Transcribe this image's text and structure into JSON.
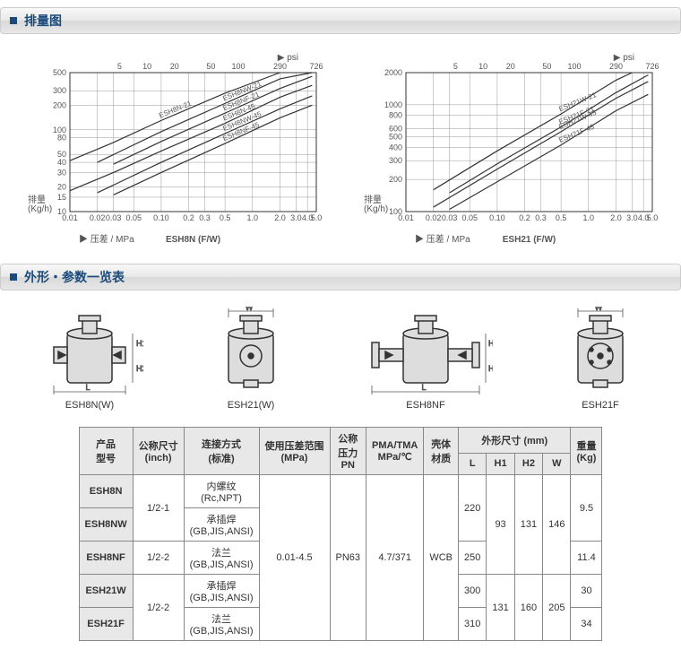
{
  "sections": {
    "capacity_title": "排量图",
    "dimensions_title": "外形・参数一览表"
  },
  "chart_left": {
    "title": "ESH8N (F/W)",
    "x_axis_label": "▶ 压差 / MPa",
    "x_axis_label2": "▶ psi",
    "y_axis_label": "排量\n(Kg/h)",
    "x_ticks_bottom": [
      "0.01",
      "0.02",
      "0.03",
      "0.05",
      "0.10",
      "0.2",
      "0.3",
      "0.5",
      "1.0",
      "2.0",
      "3.0",
      "4.0",
      "5.0"
    ],
    "x_ticks_top": [
      "5",
      "10",
      "20",
      "50",
      "100",
      "290",
      "726"
    ],
    "y_ticks": [
      "10",
      "15",
      "20",
      "30",
      "40",
      "50",
      "80",
      "100",
      "200",
      "300",
      "500"
    ],
    "xlim": [
      0.01,
      5.0
    ],
    "ylim": [
      10,
      500
    ],
    "curves": [
      {
        "label": "ESH8N-21",
        "points": [
          [
            0.01,
            42
          ],
          [
            0.03,
            70
          ],
          [
            0.1,
            130
          ],
          [
            0.5,
            280
          ],
          [
            2.0,
            500
          ]
        ]
      },
      {
        "label": "ESH8NW-21",
        "points": [
          [
            0.02,
            40
          ],
          [
            0.1,
            95
          ],
          [
            0.5,
            210
          ],
          [
            2.0,
            420
          ],
          [
            4.5,
            500
          ]
        ]
      },
      {
        "label": "ESH8NF-21",
        "points": [
          [
            0.03,
            38
          ],
          [
            0.1,
            72
          ],
          [
            0.5,
            160
          ],
          [
            2.0,
            320
          ],
          [
            4.5,
            450
          ]
        ]
      },
      {
        "label": "ESH8N-45",
        "points": [
          [
            0.01,
            18
          ],
          [
            0.03,
            30
          ],
          [
            0.1,
            55
          ],
          [
            0.5,
            120
          ],
          [
            2.0,
            250
          ],
          [
            4.5,
            350
          ]
        ]
      },
      {
        "label": "ESH8NW-45",
        "points": [
          [
            0.02,
            17
          ],
          [
            0.1,
            40
          ],
          [
            0.5,
            90
          ],
          [
            2.0,
            180
          ],
          [
            4.5,
            260
          ]
        ]
      },
      {
        "label": "ESH8NF-45",
        "points": [
          [
            0.03,
            16
          ],
          [
            0.1,
            30
          ],
          [
            0.5,
            68
          ],
          [
            2.0,
            140
          ],
          [
            4.5,
            200
          ]
        ]
      }
    ],
    "grid_color": "#999",
    "line_color": "#333",
    "background": "#fff"
  },
  "chart_right": {
    "title": "ESH21 (F/W)",
    "x_axis_label": "▶ 压差 / MPa",
    "x_axis_label2": "▶ psi",
    "y_axis_label": "排量\n(Kg/h)",
    "x_ticks_bottom": [
      "0.01",
      "0.02",
      "0.03",
      "0.05",
      "0.10",
      "0.2",
      "0.3",
      "0.5",
      "1.0",
      "2.0",
      "3.0",
      "4.0",
      "5.0"
    ],
    "x_ticks_top": [
      "5",
      "10",
      "20",
      "50",
      "100",
      "290",
      "726"
    ],
    "y_ticks": [
      "100",
      "200",
      "300",
      "400",
      "500",
      "600",
      "800",
      "1000",
      "2000"
    ],
    "xlim": [
      0.01,
      5.0
    ],
    "ylim": [
      100,
      2000
    ],
    "curves": [
      {
        "label": "ESH21W-21",
        "points": [
          [
            0.02,
            160
          ],
          [
            0.1,
            370
          ],
          [
            0.5,
            820
          ],
          [
            2.0,
            1700
          ],
          [
            3.0,
            2000
          ]
        ]
      },
      {
        "label": "ESH21F-21",
        "points": [
          [
            0.03,
            150
          ],
          [
            0.1,
            280
          ],
          [
            0.5,
            620
          ],
          [
            2.0,
            1300
          ],
          [
            4.5,
            1900
          ]
        ]
      },
      {
        "label": "ESH21W-45",
        "points": [
          [
            0.02,
            110
          ],
          [
            0.1,
            250
          ],
          [
            0.5,
            560
          ],
          [
            2.0,
            1150
          ],
          [
            4.5,
            1650
          ]
        ]
      },
      {
        "label": "ESH21F-45",
        "points": [
          [
            0.03,
            105
          ],
          [
            0.1,
            190
          ],
          [
            0.5,
            420
          ],
          [
            2.0,
            880
          ],
          [
            4.5,
            1250
          ]
        ]
      }
    ],
    "grid_color": "#999",
    "line_color": "#333",
    "background": "#fff"
  },
  "drawings": {
    "labels": [
      "ESH8N(W)",
      "ESH21(W)",
      "ESH8NF",
      "ESH21F"
    ],
    "dims": [
      "L",
      "W",
      "H1",
      "H2"
    ]
  },
  "table": {
    "headers": {
      "model": "产品\n型号",
      "nominal": "公称尺寸\n(inch)",
      "connection": "连接方式\n(标准)",
      "pressure_range": "使用压差范围\n(MPa)",
      "pn": "公称\n压力\nPN",
      "pma": "PMA/TMA\nMPa/℃",
      "material": "壳体\n材质",
      "dimensions": "外形尺寸 (mm)",
      "L": "L",
      "H1": "H1",
      "H2": "H2",
      "W": "W",
      "weight": "重量\n(Kg)"
    },
    "rows": [
      {
        "model": "ESH8N",
        "nominal": "1/2-1",
        "connection": "内螺纹\n(Rc,NPT)",
        "range": "0.01-4.5",
        "pn": "PN63",
        "pma": "4.7/371",
        "material": "WCB",
        "L": "220",
        "H1": "93",
        "H2": "131",
        "W": "146",
        "weight": "9.5"
      },
      {
        "model": "ESH8NW",
        "nominal": "",
        "connection": "承插焊\n(GB,JIS,ANSI)",
        "range": "",
        "pn": "",
        "pma": "",
        "material": "",
        "L": "",
        "H1": "",
        "H2": "",
        "W": "",
        "weight": ""
      },
      {
        "model": "ESH8NF",
        "nominal": "1/2-2",
        "connection": "法兰\n(GB,JIS,ANSI)",
        "range": "",
        "pn": "",
        "pma": "",
        "material": "",
        "L": "250",
        "H1": "",
        "H2": "",
        "W": "",
        "weight": "11.4"
      },
      {
        "model": "ESH21W",
        "nominal": "1/2-2",
        "connection": "承插焊\n(GB,JIS,ANSI)",
        "range": "",
        "pn": "",
        "pma": "",
        "material": "",
        "L": "300",
        "H1": "131",
        "H2": "160",
        "W": "205",
        "weight": "30"
      },
      {
        "model": "ESH21F",
        "nominal": "",
        "connection": "法兰\n(GB,JIS,ANSI)",
        "range": "",
        "pn": "",
        "pma": "",
        "material": "",
        "L": "310",
        "H1": "",
        "H2": "",
        "W": "",
        "weight": "34"
      }
    ]
  }
}
